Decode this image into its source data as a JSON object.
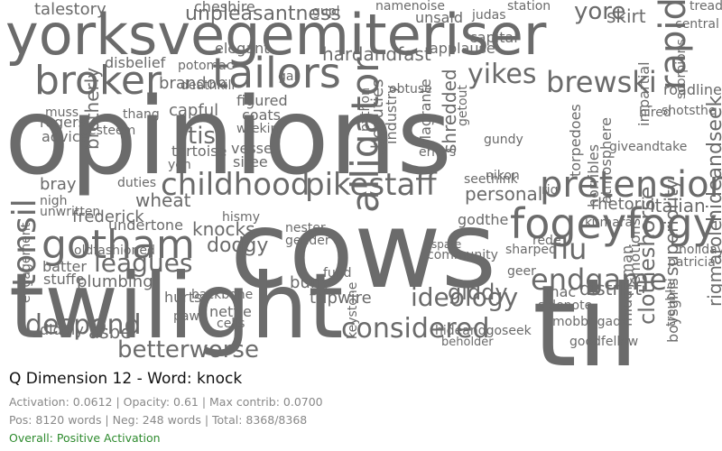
{
  "panel": {
    "title": "Q Dimension 12 - Word: knock",
    "metrics": "Activation: 0.0612 | Opacity: 0.61 | Max contrib: 0.0700",
    "counts": "Pos: 8120 words | Neg: 248 words | Total: 8368/8368",
    "status": "Overall: Positive Activation",
    "status_color": "#2e8b2e"
  },
  "cloud": {
    "word_color": "#6b6b6b",
    "words": [
      {
        "t": "opinions"
      },
      {
        "t": "cows"
      },
      {
        "t": "twilight"
      },
      {
        "t": "til"
      },
      {
        "t": "yorksvegemiteriser"
      },
      {
        "t": "tailors"
      },
      {
        "t": "broker"
      },
      {
        "t": "fogeyfogy"
      },
      {
        "t": "pretension"
      },
      {
        "t": "pikestaff"
      },
      {
        "t": "alligator"
      },
      {
        "t": "gotham"
      },
      {
        "t": "tonsil"
      },
      {
        "t": "childhood"
      },
      {
        "t": "considered"
      },
      {
        "t": "betterworse"
      },
      {
        "t": "ideology"
      },
      {
        "t": "brewski"
      },
      {
        "t": "rapid"
      },
      {
        "t": "unpleasantness"
      },
      {
        "t": "hardandfast"
      },
      {
        "t": "yikes"
      },
      {
        "t": "leagues"
      },
      {
        "t": "despond"
      },
      {
        "t": "endgame"
      },
      {
        "t": "flu"
      },
      {
        "t": "dodgy"
      },
      {
        "t": "knocks"
      },
      {
        "t": "tis"
      },
      {
        "t": "yore"
      },
      {
        "t": "skirt"
      },
      {
        "t": "bray"
      },
      {
        "t": "frederick"
      },
      {
        "t": "wheat"
      },
      {
        "t": "brandon"
      },
      {
        "t": "talestory"
      },
      {
        "t": "disbelief"
      },
      {
        "t": "giddy"
      },
      {
        "t": "shredded"
      },
      {
        "t": "personal"
      },
      {
        "t": "rhetoric"
      },
      {
        "t": "italian"
      },
      {
        "t": "clotheshorse"
      },
      {
        "t": "superiority"
      },
      {
        "t": "rigmarole"
      },
      {
        "t": "hideandseek"
      },
      {
        "t": "shotsthe"
      },
      {
        "t": "roadline"
      },
      {
        "t": "mobbrigade"
      },
      {
        "t": "goodfellow"
      },
      {
        "t": "hideandgoseek"
      },
      {
        "t": "beholder"
      },
      {
        "t": "sidenote"
      },
      {
        "t": "burly"
      },
      {
        "t": "tripwire"
      },
      {
        "t": "community"
      },
      {
        "t": "spate"
      },
      {
        "t": "nester"
      },
      {
        "t": "gender"
      },
      {
        "t": "godthe"
      },
      {
        "t": "plumbing"
      },
      {
        "t": "batter"
      },
      {
        "t": "stuffe"
      },
      {
        "t": "asbe"
      },
      {
        "t": "diddly"
      },
      {
        "t": "hurts"
      },
      {
        "t": "nettle"
      },
      {
        "t": "cells"
      },
      {
        "t": "backbone"
      },
      {
        "t": "vessel"
      },
      {
        "t": "siree"
      },
      {
        "t": "wrekin"
      },
      {
        "t": "coats"
      },
      {
        "t": "figured"
      },
      {
        "t": "capful"
      },
      {
        "t": "thang"
      },
      {
        "t": "esteem"
      },
      {
        "t": "advice"
      },
      {
        "t": "rogers"
      },
      {
        "t": "muss"
      },
      {
        "t": "brotherly"
      },
      {
        "t": "tortoise"
      },
      {
        "t": "yen"
      },
      {
        "t": "duties"
      },
      {
        "t": "nigh"
      },
      {
        "t": "unwritten"
      },
      {
        "t": "undertone"
      },
      {
        "t": "hismy"
      },
      {
        "t": "oldfashioned"
      },
      {
        "t": "gupl"
      },
      {
        "t": "beauties"
      },
      {
        "t": "industry"
      },
      {
        "t": "flagrante"
      },
      {
        "t": "errors"
      },
      {
        "t": "gundy"
      },
      {
        "t": "nikon"
      },
      {
        "t": "seethink"
      },
      {
        "t": "mac"
      },
      {
        "t": "kumara"
      },
      {
        "t": "hired"
      },
      {
        "t": "giveandtake"
      },
      {
        "t": "holidays"
      },
      {
        "t": "patricia"
      },
      {
        "t": "middleman"
      },
      {
        "t": "troublei"
      },
      {
        "t": "sharped"
      },
      {
        "t": "geer"
      },
      {
        "t": "rede"
      },
      {
        "t": "applause"
      },
      {
        "t": "capital"
      },
      {
        "t": "unsaid"
      },
      {
        "t": "elegant"
      },
      {
        "t": "potomac"
      },
      {
        "t": "deathkill"
      },
      {
        "t": "gal"
      },
      {
        "t": "cheshire"
      },
      {
        "t": "obtuse"
      },
      {
        "t": "judas"
      },
      {
        "t": "station"
      },
      {
        "t": "namenoise"
      },
      {
        "t": "central"
      },
      {
        "t": "tread"
      },
      {
        "t": "rig"
      },
      {
        "t": "emotions"
      },
      {
        "t": "impartial"
      },
      {
        "t": "torpedoes"
      },
      {
        "t": "atmosphere"
      },
      {
        "t": "horribles"
      },
      {
        "t": "district"
      },
      {
        "t": "engagement"
      },
      {
        "t": "keystone"
      },
      {
        "t": "fund"
      },
      {
        "t": "paw"
      },
      {
        "t": "getout"
      },
      {
        "t": "scorpions"
      },
      {
        "t": "boysgirls"
      },
      {
        "t": "python"
      }
    ]
  }
}
